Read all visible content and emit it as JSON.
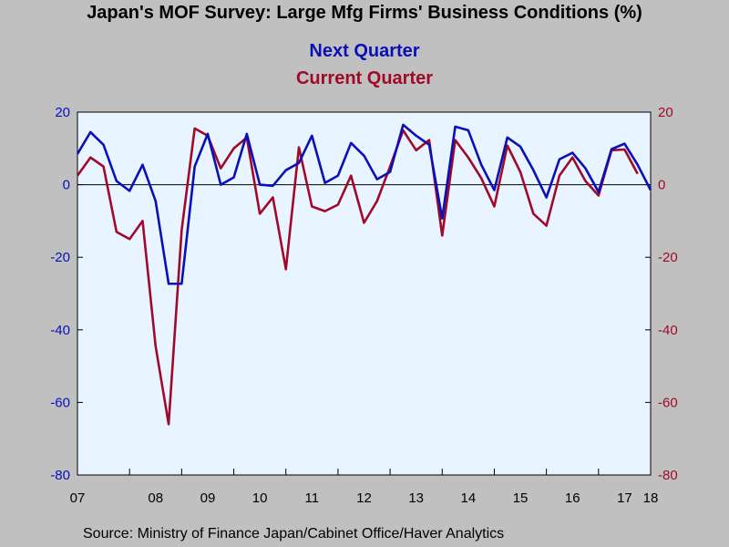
{
  "title": "Japan's MOF Survey: Large Mfg Firms' Business Conditions (%)",
  "source": "Source:  Ministry of Finance Japan/Cabinet Office/Haver Analytics",
  "colors": {
    "next": "#0a10b8",
    "current": "#a00a2a",
    "plot_bg": "#e8f4ff",
    "page_bg": "#c0c0c0"
  },
  "chart_data": {
    "type": "line",
    "x_start": 2007.0,
    "x_step": 0.25,
    "xlim": [
      2007.0,
      2018.0
    ],
    "ylim": [
      -80,
      20
    ],
    "yticks": [
      20,
      0,
      -20,
      -40,
      -60,
      -80
    ],
    "xticks": [
      "07",
      "08",
      "09",
      "10",
      "11",
      "12",
      "13",
      "14",
      "15",
      "16",
      "17",
      "18"
    ],
    "series": [
      {
        "name": "Next Quarter",
        "color": "#0a10b8",
        "values": [
          8.5,
          14.5,
          11,
          1,
          -1.7,
          5.5,
          -4.5,
          -27.3,
          -27.3,
          5,
          14,
          0,
          2,
          14,
          0,
          -0.3,
          4,
          6,
          13.5,
          0.5,
          2.5,
          11.5,
          8,
          1.5,
          3.5,
          16.5,
          13.5,
          11,
          -9.3,
          16,
          15,
          5.5,
          -1.5,
          13,
          10.5,
          4,
          -3.5,
          7,
          8.8,
          4.5,
          -2,
          9.8,
          11.3,
          5.5,
          -1.5
        ]
      },
      {
        "name": "Current Quarter",
        "color": "#a00a2a",
        "values": [
          2.5,
          7.5,
          5,
          -13,
          -15,
          -10,
          -44.5,
          -66,
          -12.5,
          15.5,
          13.5,
          4.5,
          10,
          13,
          -8,
          -3.5,
          -23.3,
          10.3,
          -6,
          -7.3,
          -5.5,
          2.5,
          -10.5,
          -4.5,
          5,
          15,
          9.5,
          12.3,
          -14,
          12.3,
          7.5,
          1.8,
          -6,
          10.8,
          3.5,
          -8,
          -11.3,
          2.5,
          7.5,
          1,
          -3,
          9.5,
          9.7,
          3
        ]
      }
    ]
  }
}
